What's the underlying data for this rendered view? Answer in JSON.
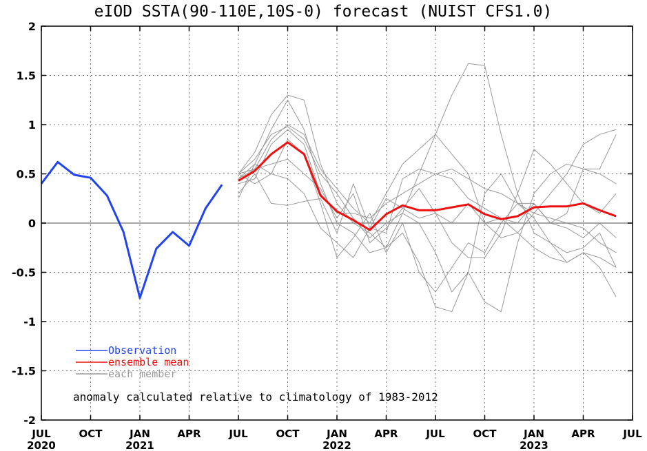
{
  "chart_data": {
    "type": "line",
    "title": "eIOD SSTA(90-110E,10S-0) forecast (NUIST CFS1.0)",
    "note": "anomaly calculated relative to climatology of 1983-2012",
    "ylim": [
      -2,
      2
    ],
    "yticks": [
      "-2",
      "-1.5",
      "-1",
      "-0.5",
      "0",
      "0.5",
      "1",
      "1.5",
      "2"
    ],
    "xticks": [
      {
        "month": "JUL",
        "year": "2020"
      },
      {
        "month": "OCT",
        "year": ""
      },
      {
        "month": "JAN",
        "year": "2021"
      },
      {
        "month": "APR",
        "year": ""
      },
      {
        "month": "JUL",
        "year": ""
      },
      {
        "month": "OCT",
        "year": ""
      },
      {
        "month": "JAN",
        "year": "2022"
      },
      {
        "month": "APR",
        "year": ""
      },
      {
        "month": "JUL",
        "year": ""
      },
      {
        "month": "OCT",
        "year": ""
      },
      {
        "month": "JAN",
        "year": "2023"
      },
      {
        "month": "APR",
        "year": ""
      },
      {
        "month": "JUL",
        "year": ""
      }
    ],
    "grid": true,
    "legend": {
      "placement": "bottom-left",
      "entries": [
        {
          "label": "Observation",
          "color": "#2244ee"
        },
        {
          "label": "ensemble mean",
          "color": "#ee1111"
        },
        {
          "label": "each member",
          "color": "#999999"
        }
      ]
    },
    "observation": {
      "name": "Observation",
      "color": "#2244ee",
      "x": [
        "2020-07",
        "2020-08",
        "2020-09",
        "2020-10",
        "2020-11",
        "2020-12",
        "2021-01",
        "2021-02",
        "2021-03",
        "2021-04",
        "2021-05",
        "2021-06"
      ],
      "values": [
        0.4,
        0.62,
        0.49,
        0.46,
        0.28,
        -0.09,
        -0.76,
        -0.26,
        -0.09,
        -0.23,
        0.15,
        0.39
      ]
    },
    "ensemble_mean": {
      "name": "ensemble mean",
      "color": "#ee1111",
      "x": [
        "2021-07",
        "2021-08",
        "2021-09",
        "2021-10",
        "2021-11",
        "2021-12",
        "2022-01",
        "2022-02",
        "2022-03",
        "2022-04",
        "2022-05",
        "2022-06",
        "2022-07",
        "2022-08",
        "2022-09",
        "2022-10",
        "2022-11",
        "2022-12",
        "2023-01",
        "2023-02",
        "2023-03",
        "2023-04",
        "2023-05",
        "2023-06"
      ],
      "values": [
        0.43,
        0.53,
        0.7,
        0.82,
        0.7,
        0.28,
        0.12,
        0.03,
        -0.07,
        0.09,
        0.18,
        0.13,
        0.13,
        0.16,
        0.19,
        0.09,
        0.04,
        0.07,
        0.16,
        0.17,
        0.17,
        0.2,
        0.13,
        0.07
      ]
    },
    "members": {
      "name": "each member",
      "color": "#999999",
      "x": [
        "2021-07",
        "2021-08",
        "2021-09",
        "2021-10",
        "2021-11",
        "2021-12",
        "2022-01",
        "2022-02",
        "2022-03",
        "2022-04",
        "2022-05",
        "2022-06",
        "2022-07",
        "2022-08",
        "2022-09",
        "2022-10",
        "2022-11",
        "2022-12",
        "2023-01",
        "2023-02",
        "2023-03",
        "2023-04",
        "2023-05",
        "2023-06"
      ],
      "series": [
        [
          0.5,
          0.72,
          1.1,
          1.3,
          1.25,
          0.6,
          0.2,
          0.0,
          -0.1,
          -0.25,
          0.1,
          0.5,
          0.9,
          1.3,
          1.62,
          1.6,
          0.9,
          0.3,
          -0.1,
          -0.2,
          -0.3,
          -0.25,
          -0.1,
          -0.45
        ],
        [
          0.45,
          0.6,
          0.95,
          1.25,
          0.95,
          0.4,
          0.0,
          -0.1,
          -0.3,
          -0.25,
          -0.1,
          -0.4,
          -0.85,
          -0.9,
          -0.5,
          0.3,
          0.5,
          0.2,
          0.05,
          -0.2,
          -0.4,
          -0.3,
          -0.45,
          -0.75
        ],
        [
          0.5,
          0.55,
          0.85,
          1.0,
          0.9,
          0.55,
          0.35,
          0.15,
          0.0,
          0.3,
          0.6,
          0.75,
          0.9,
          0.7,
          0.5,
          0.0,
          -0.15,
          -0.1,
          0.1,
          0.3,
          0.5,
          0.8,
          0.9,
          0.95
        ],
        [
          0.4,
          0.45,
          0.8,
          0.95,
          0.8,
          0.3,
          0.1,
          0.1,
          0.05,
          0.2,
          0.3,
          0.4,
          0.5,
          0.55,
          0.45,
          0.35,
          0.3,
          0.2,
          0.1,
          0.05,
          0.0,
          -0.05,
          -0.2,
          -0.3
        ],
        [
          0.45,
          0.55,
          0.6,
          0.65,
          0.5,
          0.35,
          0.05,
          0.3,
          -0.2,
          -0.05,
          0.15,
          0.35,
          0.1,
          -0.2,
          -0.35,
          -0.35,
          -0.1,
          0.3,
          0.75,
          0.6,
          0.4,
          0.2,
          0.1,
          0.3
        ],
        [
          0.3,
          0.5,
          0.2,
          0.18,
          0.22,
          0.25,
          -0.1,
          0.4,
          -0.05,
          -0.1,
          0.45,
          0.55,
          0.5,
          0.45,
          0.25,
          0.15,
          0.05,
          -0.1,
          -0.25,
          -0.35,
          -0.4,
          -0.3,
          -0.35,
          -0.45
        ],
        [
          0.5,
          0.65,
          0.9,
          0.98,
          0.85,
          0.5,
          0.3,
          0.05,
          -0.15,
          0.0,
          0.1,
          0.0,
          -0.3,
          -0.7,
          -0.5,
          -0.8,
          -0.9,
          -0.2,
          0.3,
          0.5,
          0.6,
          0.55,
          0.5,
          0.4
        ],
        [
          0.25,
          0.6,
          0.5,
          0.45,
          0.3,
          -0.05,
          -0.2,
          -0.35,
          -0.05,
          0.25,
          0.15,
          0.05,
          0.1,
          0.0,
          0.2,
          0.0,
          0.05,
          0.0,
          0.2,
          0.0,
          -0.05,
          -0.15,
          0.0,
          -0.15
        ],
        [
          0.5,
          0.4,
          0.5,
          0.85,
          0.7,
          0.2,
          -0.35,
          -0.15,
          0.1,
          -0.3,
          0.0,
          -0.5,
          -0.7,
          -0.45,
          -0.2,
          -0.3,
          0.0,
          0.2,
          0.2,
          0.0,
          0.1,
          0.55,
          0.55,
          0.9
        ]
      ]
    }
  }
}
